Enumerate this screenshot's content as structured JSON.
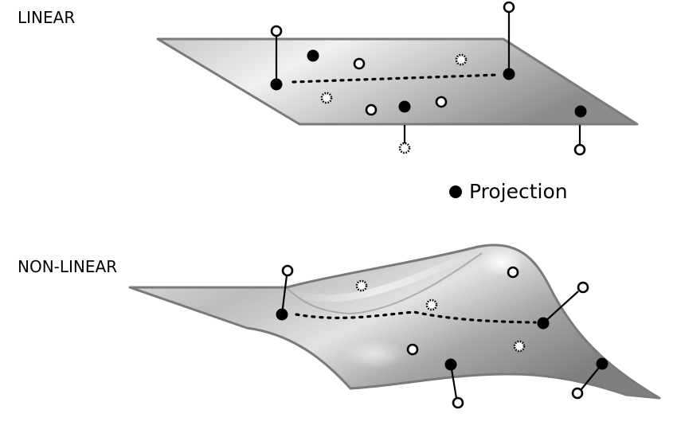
{
  "labels": {
    "linear": "LINEAR",
    "non_linear": "NON-LINEAR"
  },
  "legend": {
    "projection": "Projection"
  },
  "colors": {
    "surface_light": "#f2f2f2",
    "surface_dark": "#8a8a8a",
    "surface_edge": "#7a7a7a",
    "point": "#000000",
    "hollow_fill": "#ffffff"
  },
  "icons": {
    "projected_point": "filled-circle",
    "original_point": "hollow-circle",
    "hidden_point": "dashed-circle"
  }
}
